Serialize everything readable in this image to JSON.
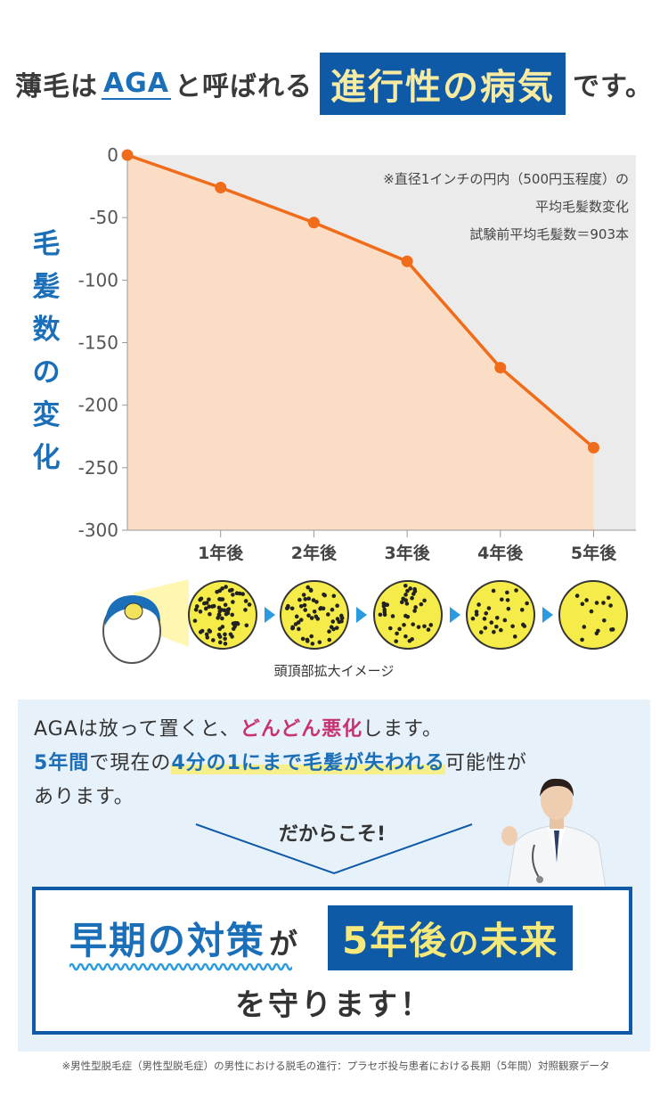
{
  "headline": {
    "part1": "薄毛は",
    "aga": "AGA",
    "part2": "と呼ばれる",
    "boxed": "進行性の病気",
    "part3": "です。"
  },
  "ylabel": [
    "毛",
    "髪",
    "数",
    "の",
    "変",
    "化"
  ],
  "note": {
    "line1": "※直径1インチの円内（500円玉程度）の",
    "line2": "平均毛髪数変化",
    "line3": "試験前平均毛髪数＝903本"
  },
  "chart_data": {
    "type": "area",
    "x": [
      0,
      1,
      2,
      3,
      4,
      5
    ],
    "categories": [
      "",
      "1年後",
      "2年後",
      "3年後",
      "4年後",
      "5年後"
    ],
    "values": [
      0,
      -26,
      -54,
      -85,
      -170,
      -234
    ],
    "yticks": [
      "0",
      "-50",
      "-100",
      "-150",
      "-200",
      "-250",
      "-300"
    ],
    "ylim": [
      -300,
      0
    ],
    "line_color": "#ef6c1a",
    "fill_color": "#fbdcc4",
    "bg_color": "#ebebeb"
  },
  "zoom": {
    "caption": "頭頂部拡大イメージ",
    "densities": [
      1.0,
      0.78,
      0.58,
      0.38,
      0.22
    ]
  },
  "panel": {
    "l1a": "AGAは放って置くと、",
    "l1b": "どんどん悪化",
    "l1c": "します。",
    "l2a": "5年間",
    "l2b": "で現在の",
    "l2c": "4分の1にまで毛髪が失われる",
    "l2d": "可能性が",
    "l3": "あります。",
    "dakara": "だからこそ!"
  },
  "result": {
    "a": "早期の対策",
    "b": "が",
    "c1": "5年後",
    "c2": "の",
    "c3": "未来",
    "d": "を守ります！"
  },
  "footnote": "※男性型脱毛症（男性型脱毛症）の男性における脱毛の進行：プラセボ投与患者における長期（5年間）対照観察データ",
  "colors": {
    "brand_blue": "#0f5aa6",
    "accent_orange": "#ef6c1a",
    "pink": "#c8336f"
  }
}
